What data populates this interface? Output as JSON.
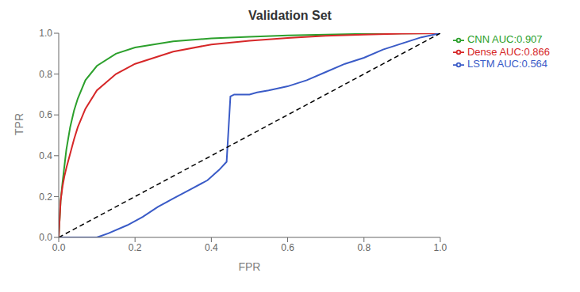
{
  "chart_data": {
    "type": "line",
    "title": "Validation Set",
    "xlabel": "FPR",
    "ylabel": "TPR",
    "xlim": [
      0.0,
      1.0
    ],
    "ylim": [
      0.0,
      1.0
    ],
    "xticks": [
      {
        "value": 0.0,
        "label": "0.0"
      },
      0.2,
      0.4,
      0.6,
      0.8,
      {
        "value": 1.0,
        "label": "1.0"
      }
    ],
    "yticks": [
      {
        "value": 0.0,
        "label": "0.0"
      },
      0.2,
      0.4,
      0.6,
      0.8,
      {
        "value": 1.0,
        "label": "1.0"
      }
    ],
    "grid": false,
    "legend": "right",
    "series": [
      {
        "name": "CNN AUC:0.907",
        "color": "#2ca02c",
        "line_style": "solid",
        "x": [
          0.0,
          0.005,
          0.01,
          0.015,
          0.02,
          0.03,
          0.04,
          0.05,
          0.07,
          0.1,
          0.15,
          0.2,
          0.3,
          0.4,
          0.5,
          0.6,
          0.7,
          0.8,
          0.9,
          1.0
        ],
        "values": [
          0.0,
          0.18,
          0.27,
          0.35,
          0.43,
          0.54,
          0.62,
          0.68,
          0.77,
          0.84,
          0.9,
          0.93,
          0.96,
          0.975,
          0.983,
          0.989,
          0.993,
          0.997,
          0.999,
          1.0
        ]
      },
      {
        "name": "Dense AUC:0.866",
        "color": "#d62728",
        "line_style": "solid",
        "x": [
          0.0,
          0.005,
          0.01,
          0.015,
          0.02,
          0.03,
          0.04,
          0.05,
          0.07,
          0.1,
          0.15,
          0.2,
          0.3,
          0.4,
          0.5,
          0.6,
          0.7,
          0.8,
          0.9,
          1.0
        ],
        "values": [
          0.0,
          0.18,
          0.25,
          0.3,
          0.34,
          0.41,
          0.48,
          0.54,
          0.63,
          0.72,
          0.8,
          0.85,
          0.91,
          0.945,
          0.963,
          0.977,
          0.987,
          0.993,
          0.998,
          1.0
        ]
      },
      {
        "name": "LSTM AUC:0.564",
        "color": "#3a5bc7",
        "line_style": "solid",
        "x": [
          0.0,
          0.01,
          0.05,
          0.08,
          0.1,
          0.13,
          0.18,
          0.22,
          0.26,
          0.3,
          0.35,
          0.39,
          0.42,
          0.44,
          0.45,
          0.46,
          0.48,
          0.5,
          0.52,
          0.55,
          0.6,
          0.65,
          0.7,
          0.75,
          0.8,
          0.85,
          0.9,
          0.95,
          1.0
        ],
        "values": [
          0.0,
          0.0,
          0.0,
          0.0,
          0.0,
          0.02,
          0.06,
          0.1,
          0.15,
          0.19,
          0.24,
          0.28,
          0.33,
          0.37,
          0.69,
          0.7,
          0.7,
          0.7,
          0.71,
          0.72,
          0.74,
          0.77,
          0.81,
          0.85,
          0.88,
          0.92,
          0.95,
          0.98,
          1.0
        ]
      },
      {
        "color": "black",
        "line_style": "dashed",
        "x": [
          0,
          1
        ],
        "values": [
          0,
          1
        ]
      }
    ]
  }
}
